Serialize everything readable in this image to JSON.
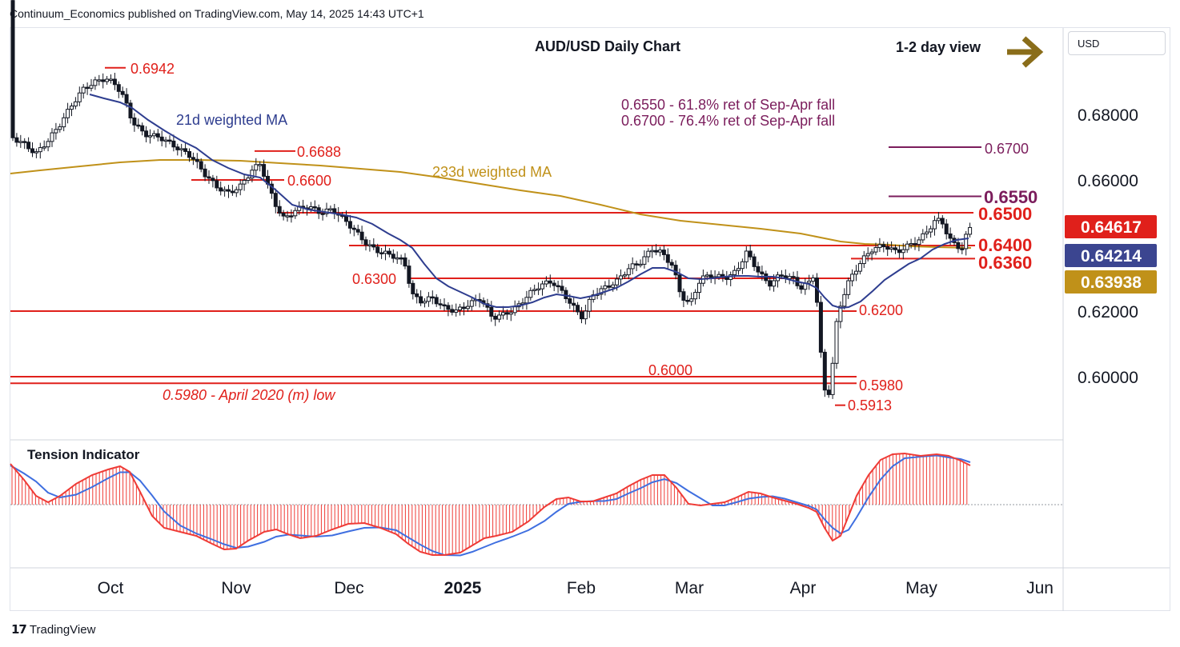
{
  "header": {
    "published": "Continuum_Economics published on TradingView.com, May 14, 2025 14:43 UTC+1",
    "currency": "USD"
  },
  "footer": {
    "brand": "TradingView"
  },
  "colors": {
    "red": "#e0201b",
    "dark_red": "#8b1a4a",
    "purple": "#7b1d5c",
    "ma21": "#2e3d8f",
    "ma233": "#c09119",
    "arrow": "#8a6d1a",
    "bull_candle": "#22a37a",
    "bear_candle": "#e0201b",
    "tension_red": "#ef3b36",
    "tension_blue": "#3f6fe0"
  },
  "chart_data": [
    {
      "type": "candlestick",
      "title": "AUD/USD Daily Chart",
      "view_label": "1-2 day view",
      "view_arrow": "right-arrow",
      "ylim": [
        0.588,
        0.698
      ],
      "y_ticks": [
        "0.68000",
        "0.66000",
        "0.62000",
        "0.60000"
      ],
      "x_ticks": [
        "Oct",
        "Nov",
        "Dec",
        "2025",
        "Feb",
        "Mar",
        "Apr",
        "May",
        "Jun"
      ],
      "price_badges": [
        {
          "label": "0.64617",
          "value": 0.64617,
          "color": "#e0201b"
        },
        {
          "label": "0.64214",
          "value": 0.64214,
          "color": "#3b4590"
        },
        {
          "label": "0.63938",
          "value": 0.63938,
          "color": "#c09119"
        }
      ],
      "series": [
        {
          "name": "21d weighted MA",
          "color": "#2e3d8f"
        },
        {
          "name": "233d weighted MA",
          "color": "#c09119"
        }
      ],
      "annotations": [
        {
          "text": "0.6550 - 61.8% ret of Sep-Apr fall"
        },
        {
          "text": "0.6700 - 76.4% ret of Sep-Apr fall"
        }
      ],
      "levels": [
        {
          "label": "0.6942",
          "value": 0.6942
        },
        {
          "label": "0.6700",
          "value": 0.67
        },
        {
          "label": "0.6688",
          "value": 0.6688
        },
        {
          "label": "0.6600",
          "value": 0.66
        },
        {
          "label": "0.6550",
          "value": 0.655
        },
        {
          "label": "0.6500",
          "value": 0.65
        },
        {
          "label": "0.6400",
          "value": 0.64
        },
        {
          "label": "0.6360",
          "value": 0.636
        },
        {
          "label": "0.6300",
          "value": 0.63
        },
        {
          "label": "0.6200",
          "value": 0.62
        },
        {
          "label": "0.6000",
          "value": 0.6
        },
        {
          "label": "0.5980",
          "value": 0.598
        },
        {
          "label": "0.5980 - April 2020 (m) low",
          "value": 0.598
        },
        {
          "label": "0.5913",
          "value": 0.5913
        }
      ]
    },
    {
      "type": "line",
      "title": "Tension Indicator"
    }
  ]
}
